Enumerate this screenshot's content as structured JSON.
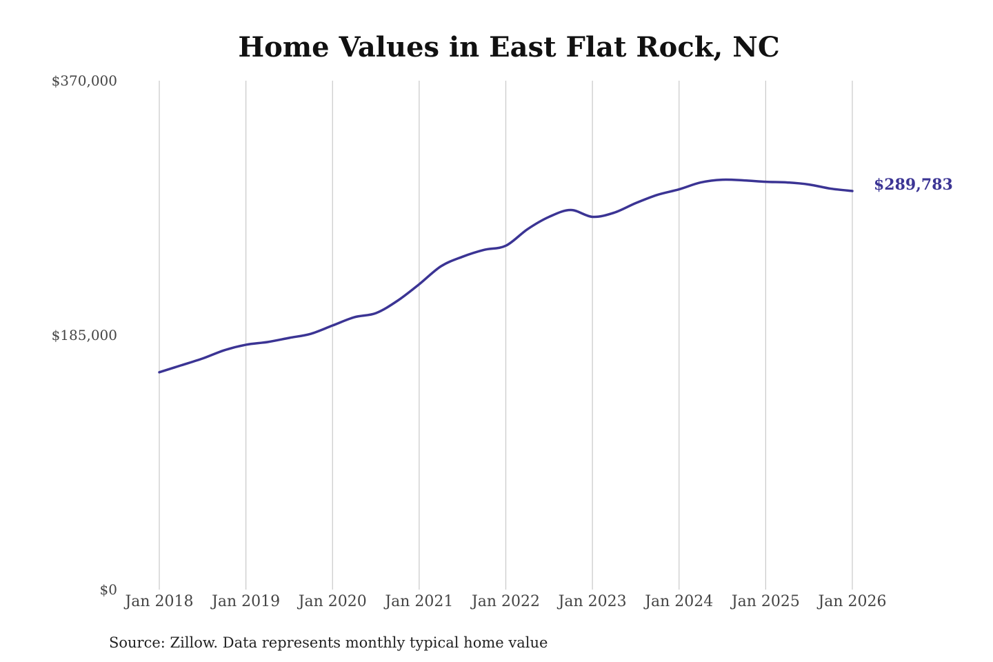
{
  "chart_data": {
    "type": "line",
    "title": "Home Values in East Flat Rock, NC",
    "xlabel": "",
    "ylabel": "",
    "ylim": [
      0,
      370000
    ],
    "yticks": [
      {
        "value": 0,
        "label": "$0"
      },
      {
        "value": 185000,
        "label": "$185,000"
      },
      {
        "value": 370000,
        "label": "$370,000"
      }
    ],
    "xticks": [
      {
        "value": "2018-01",
        "label": "Jan 2018"
      },
      {
        "value": "2019-01",
        "label": "Jan 2019"
      },
      {
        "value": "2020-01",
        "label": "Jan 2020"
      },
      {
        "value": "2021-01",
        "label": "Jan 2021"
      },
      {
        "value": "2022-01",
        "label": "Jan 2022"
      },
      {
        "value": "2023-01",
        "label": "Jan 2023"
      },
      {
        "value": "2024-01",
        "label": "Jan 2024"
      },
      {
        "value": "2025-01",
        "label": "Jan 2025"
      },
      {
        "value": "2026-01",
        "label": "Jan 2026"
      }
    ],
    "xlim": [
      "2018-01",
      "2026-01"
    ],
    "grid": "vertical",
    "series": [
      {
        "color": "#3b3494",
        "end_label": "$289,783",
        "points": [
          {
            "x": "2018-01",
            "y": 158000
          },
          {
            "x": "2018-04",
            "y": 163000
          },
          {
            "x": "2018-07",
            "y": 168000
          },
          {
            "x": "2018-10",
            "y": 174000
          },
          {
            "x": "2019-01",
            "y": 178000
          },
          {
            "x": "2019-04",
            "y": 180000
          },
          {
            "x": "2019-07",
            "y": 183000
          },
          {
            "x": "2019-10",
            "y": 186000
          },
          {
            "x": "2020-01",
            "y": 192000
          },
          {
            "x": "2020-04",
            "y": 198000
          },
          {
            "x": "2020-07",
            "y": 201000
          },
          {
            "x": "2020-10",
            "y": 210000
          },
          {
            "x": "2021-01",
            "y": 222000
          },
          {
            "x": "2021-04",
            "y": 235000
          },
          {
            "x": "2021-07",
            "y": 242000
          },
          {
            "x": "2021-10",
            "y": 247000
          },
          {
            "x": "2022-01",
            "y": 250000
          },
          {
            "x": "2022-04",
            "y": 262000
          },
          {
            "x": "2022-07",
            "y": 271000
          },
          {
            "x": "2022-10",
            "y": 276000
          },
          {
            "x": "2023-01",
            "y": 271000
          },
          {
            "x": "2023-04",
            "y": 274000
          },
          {
            "x": "2023-07",
            "y": 281000
          },
          {
            "x": "2023-10",
            "y": 287000
          },
          {
            "x": "2024-01",
            "y": 291000
          },
          {
            "x": "2024-04",
            "y": 296000
          },
          {
            "x": "2024-07",
            "y": 298000
          },
          {
            "x": "2024-10",
            "y": 297500
          },
          {
            "x": "2025-01",
            "y": 296500
          },
          {
            "x": "2025-04",
            "y": 296000
          },
          {
            "x": "2025-07",
            "y": 294500
          },
          {
            "x": "2025-10",
            "y": 291500
          },
          {
            "x": "2026-01",
            "y": 289783
          }
        ]
      }
    ],
    "source": "Source: Zillow. Data represents monthly typical home value"
  }
}
